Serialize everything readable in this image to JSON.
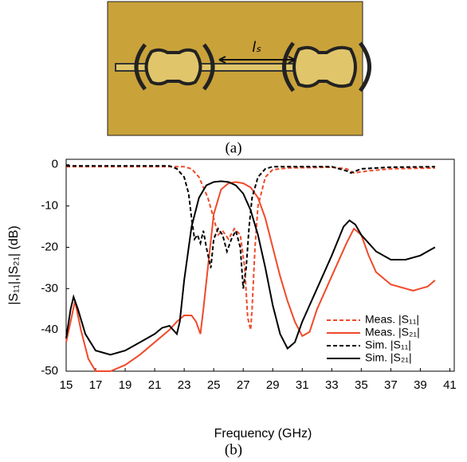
{
  "figure": {
    "panel_a_label": "(a)",
    "panel_b_label": "(b)",
    "photo_annotation": "lₛ"
  },
  "chart_data": {
    "type": "line",
    "x_label": "Frequency (GHz)",
    "y_label": "|S₁₁|,|S₂₁| (dB)",
    "xlim": [
      15,
      41.3
    ],
    "ylim": [
      -50,
      1.3
    ],
    "xticks": [
      15,
      17,
      19,
      21,
      23,
      25,
      27,
      29,
      31,
      33,
      35,
      37,
      39,
      41
    ],
    "yticks": [
      0,
      -10,
      -20,
      -30,
      -40,
      -50
    ],
    "grid": false,
    "legend": "lower right",
    "series": [
      {
        "name": "Meas. |S₁₁|",
        "color": "#f04a2a",
        "linestyle": "dashed",
        "x": [
          15,
          17,
          20,
          23,
          23.5,
          24,
          24.6,
          25,
          25.3,
          25.6,
          26,
          26.4,
          26.8,
          27.1,
          27.3,
          27.5,
          27.6,
          27.8,
          28,
          28.5,
          29,
          30,
          33,
          34,
          34.5,
          35.5,
          37,
          40
        ],
        "values": [
          -0.5,
          -0.5,
          -0.5,
          -0.5,
          -1,
          -3,
          -8,
          -13,
          -17,
          -16,
          -18,
          -15.5,
          -17,
          -25,
          -37,
          -40,
          -35,
          -20,
          -10,
          -3,
          -1.2,
          -0.8,
          -0.6,
          -1,
          -2,
          -1.5,
          -1,
          -0.8
        ]
      },
      {
        "name": "Meas. |S₂₁|",
        "color": "#f04a2a",
        "linestyle": "solid",
        "x": [
          15,
          15.3,
          15.6,
          16,
          16.5,
          17,
          18,
          19,
          20,
          21,
          22,
          22.5,
          23,
          23.5,
          23.8,
          24.1,
          24.3,
          24.6,
          25,
          25.5,
          26,
          26.5,
          27,
          27.5,
          28,
          28.5,
          29,
          29.5,
          30,
          30.5,
          31,
          31.5,
          32,
          33,
          34,
          34.5,
          35,
          35.5,
          36,
          37,
          38,
          38.5,
          39,
          39.5,
          40
        ],
        "values": [
          -43,
          -38,
          -33,
          -40,
          -47,
          -50,
          -50,
          -48.5,
          -46,
          -43,
          -40,
          -38,
          -36.5,
          -36.5,
          -38,
          -41,
          -35,
          -25,
          -12,
          -6,
          -4.5,
          -4.2,
          -4.5,
          -5.5,
          -8,
          -13,
          -20,
          -27,
          -33,
          -38,
          -41.5,
          -40.5,
          -35,
          -27,
          -19,
          -15.5,
          -17,
          -22,
          -26,
          -29,
          -30,
          -30.5,
          -30,
          -29.5,
          -28
        ]
      },
      {
        "name": "Sim. |S₁₁|",
        "color": "#000000",
        "linestyle": "dashed",
        "x": [
          15,
          18,
          22,
          22.5,
          23,
          23.3,
          23.5,
          23.7,
          23.9,
          24.1,
          24.3,
          24.5,
          24.8,
          25,
          25.3,
          25.6,
          25.9,
          26.2,
          26.5,
          26.8,
          27,
          27.2,
          27.4,
          27.6,
          28,
          28.5,
          29,
          33,
          34,
          34.3,
          35,
          37,
          40
        ],
        "values": [
          -0.3,
          -0.3,
          -0.3,
          -1,
          -3,
          -7,
          -13,
          -18,
          -17,
          -19,
          -16,
          -20,
          -25,
          -18,
          -15.5,
          -17,
          -21,
          -18,
          -16,
          -20,
          -30,
          -25,
          -15,
          -8,
          -3,
          -1,
          -0.5,
          -0.5,
          -1.5,
          -2,
          -1,
          -0.6,
          -0.5
        ]
      },
      {
        "name": "Sim. |S₂₁|",
        "color": "#000000",
        "linestyle": "solid",
        "x": [
          15,
          15.3,
          15.5,
          15.8,
          16.3,
          17,
          18,
          19,
          20,
          21,
          21.5,
          22,
          22.5,
          22.7,
          23,
          23.5,
          24,
          24.5,
          25,
          25.5,
          26,
          26.5,
          27,
          27.5,
          28,
          28.5,
          29,
          29.5,
          30,
          30.5,
          31,
          32,
          33,
          33.8,
          34.2,
          34.6,
          35,
          36,
          37,
          38,
          39,
          40
        ],
        "values": [
          -42,
          -35,
          -32,
          -35,
          -41,
          -45,
          -46,
          -45,
          -43,
          -41,
          -39.5,
          -39,
          -41,
          -38,
          -28,
          -15,
          -8,
          -5,
          -4.2,
          -4,
          -4.2,
          -5,
          -7,
          -11,
          -17,
          -25,
          -34,
          -41,
          -44.5,
          -43,
          -38,
          -30,
          -22,
          -15,
          -13.5,
          -14.5,
          -17,
          -21,
          -23,
          -23,
          -22,
          -20
        ]
      }
    ]
  }
}
